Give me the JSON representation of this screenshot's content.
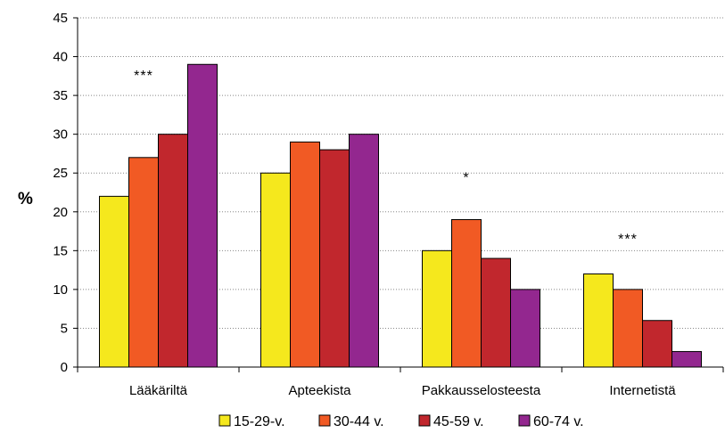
{
  "chart_data": {
    "type": "bar",
    "ylabel": "%",
    "xlabel": "",
    "ylim": [
      0,
      45
    ],
    "yticks": [
      0,
      5,
      10,
      15,
      20,
      25,
      30,
      35,
      40,
      45
    ],
    "grid": "dotted horizontal",
    "legend_position": "bottom",
    "categories": [
      "Lääkäriltä",
      "Apteekista",
      "Pakkausselosteesta",
      "Internetistä"
    ],
    "annotations": [
      "***",
      "",
      "*",
      "***"
    ],
    "series": [
      {
        "name": "15-29-v.",
        "color": "#f5e81d",
        "values": [
          22,
          25,
          15,
          12
        ]
      },
      {
        "name": "30-44 v.",
        "color": "#f15a24",
        "values": [
          27,
          29,
          19,
          10
        ]
      },
      {
        "name": "45-59 v.",
        "color": "#c1272d",
        "values": [
          30,
          28,
          14,
          6
        ]
      },
      {
        "name": "60-74 v.",
        "color": "#93278f",
        "values": [
          39,
          30,
          10,
          2
        ]
      }
    ]
  }
}
